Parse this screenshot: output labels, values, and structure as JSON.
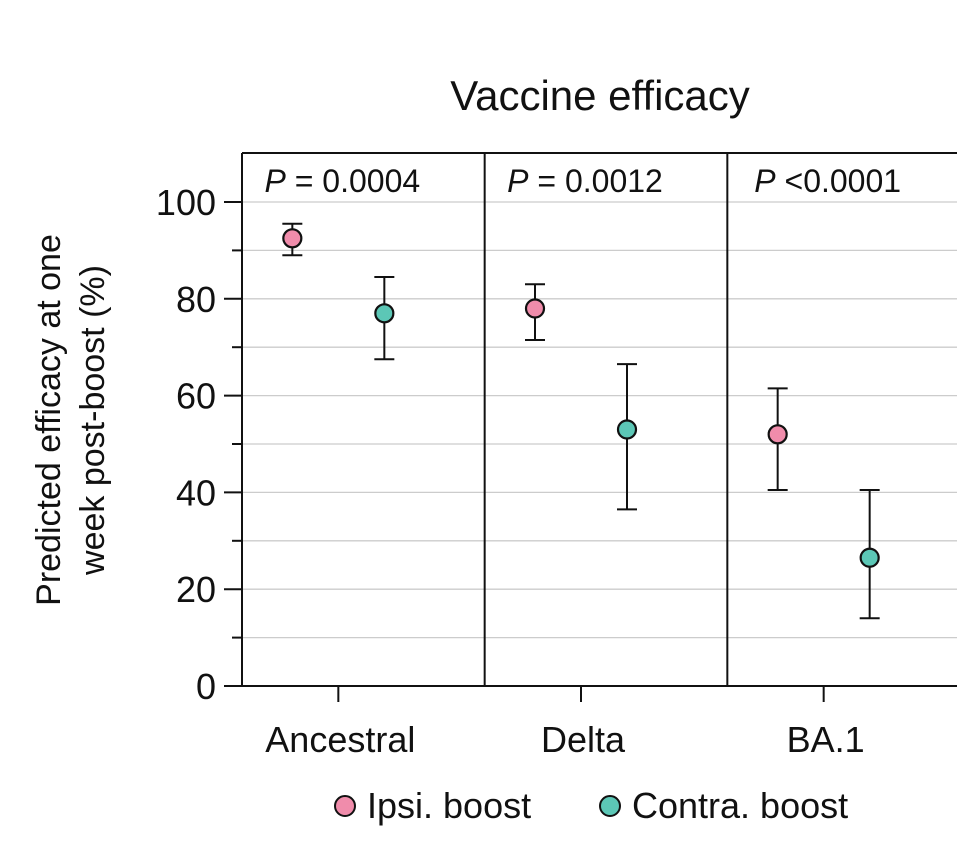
{
  "chart_data": {
    "type": "scatter",
    "title": "Vaccine efficacy",
    "ylabel": [
      "Predicted efficacy at one",
      "week post-boost (%)"
    ],
    "ylim": [
      0,
      110
    ],
    "yticks": [
      0,
      20,
      40,
      60,
      80,
      100
    ],
    "minor_yticks": [
      10,
      30,
      50,
      70,
      90
    ],
    "grid": true,
    "legend_position": "bottom",
    "categories": [
      "Ancestral",
      "Delta",
      "BA.1"
    ],
    "p_values": [
      {
        "prefix": "P",
        "text": " = 0.0004"
      },
      {
        "prefix": "P",
        "text": " = 0.0012"
      },
      {
        "prefix": "P",
        "text": " <0.0001"
      }
    ],
    "series": [
      {
        "name": "Ipsi. boost",
        "color": "#f08cab",
        "values": [
          92.5,
          78,
          52
        ],
        "lower": [
          89,
          71.5,
          40.5
        ],
        "upper": [
          95.5,
          83,
          61.5
        ]
      },
      {
        "name": "Contra. boost",
        "color": "#5cc7b6",
        "values": [
          77,
          53,
          26.5
        ],
        "lower": [
          67.5,
          36.5,
          14
        ],
        "upper": [
          84.5,
          66.5,
          40.5
        ]
      }
    ]
  }
}
